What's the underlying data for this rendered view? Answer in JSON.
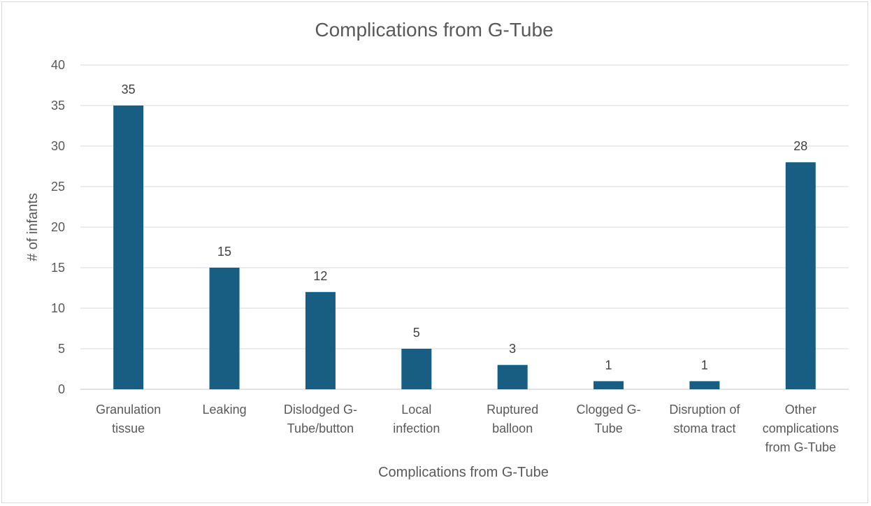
{
  "chart_data": {
    "type": "bar",
    "title": "Complications from G-Tube",
    "xlabel": "Complications from G-Tube",
    "ylabel": "# of infants",
    "ylim": [
      0,
      40
    ],
    "yticks": [
      0,
      5,
      10,
      15,
      20,
      25,
      30,
      35,
      40
    ],
    "grid": true,
    "bar_color": "#175e82",
    "categories": [
      [
        "Granulation",
        "tissue"
      ],
      [
        "Leaking"
      ],
      [
        "Dislodged G-",
        "Tube/button"
      ],
      [
        "Local",
        "infection"
      ],
      [
        "Ruptured",
        "balloon"
      ],
      [
        "Clogged G-",
        "Tube"
      ],
      [
        "Disruption of",
        "stoma tract"
      ],
      [
        "Other",
        "complications",
        "from G-Tube"
      ]
    ],
    "values": [
      35,
      15,
      12,
      5,
      3,
      1,
      1,
      28
    ],
    "data_labels": [
      "35",
      "15",
      "12",
      "5",
      "3",
      "1",
      "1",
      "28"
    ]
  }
}
